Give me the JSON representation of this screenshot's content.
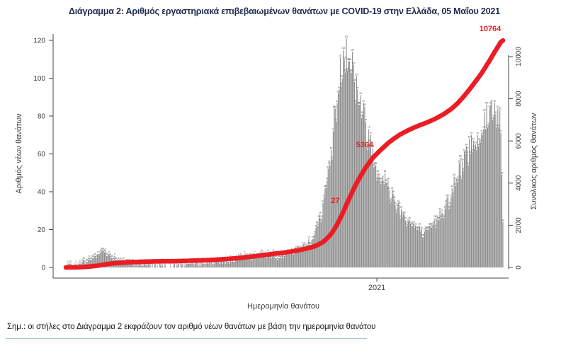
{
  "page": {
    "title": "Διάγραμμα 2: Αριθμός εργαστηριακά επιβεβαιωμένων θανάτων με COVID-19 στην Ελλάδα, 05 Μαΐου 2021",
    "note": "Σημ.: οι στήλες στο Διάγραμμα 2 εκφράζουν τον αριθμό νέων θανάτων με βάση την ημερομηνία θανάτου"
  },
  "chart_data": {
    "type": "bar",
    "title": "Διάγραμμα 2: Αριθμός εργαστηριακά επιβεβαιωμένων θανάτων με COVID-19 στην Ελλάδα, 05 Μαΐου 2021",
    "xlabel": "Ημερομηνία θανάτου",
    "x_axis": {
      "start_date": "2020-03-01",
      "end_date": "2021-05-05",
      "tick_labels": [
        "2021"
      ],
      "tick_dates": [
        "2021-01-01"
      ]
    },
    "y_left": {
      "label": "Αριθμός νέων θανάτων",
      "ticks": [
        0,
        20,
        40,
        60,
        80,
        100,
        120
      ],
      "ylim": [
        0,
        121
      ],
      "max_daily_deaths": 121
    },
    "y_right": {
      "label": "Συνολικός αριθμός θανάτων",
      "ticks": [
        0,
        2000,
        4000,
        6000,
        8000,
        10000
      ],
      "ylim": [
        0,
        10764
      ]
    },
    "series": [
      {
        "name": "daily-deaths-bars",
        "style": "bar",
        "description": "approximate daily new deaths envelope (control points interpolated per day)",
        "control_points": [
          [
            "2020-03-04",
            0.5
          ],
          [
            "2020-03-12",
            1
          ],
          [
            "2020-03-20",
            3
          ],
          [
            "2020-03-28",
            5
          ],
          [
            "2020-04-05",
            9
          ],
          [
            "2020-04-12",
            7
          ],
          [
            "2020-04-20",
            4
          ],
          [
            "2020-05-01",
            2.5
          ],
          [
            "2020-05-15",
            1.5
          ],
          [
            "2020-06-01",
            1
          ],
          [
            "2020-06-15",
            1
          ],
          [
            "2020-07-01",
            1.5
          ],
          [
            "2020-07-15",
            2
          ],
          [
            "2020-08-01",
            3
          ],
          [
            "2020-08-15",
            4
          ],
          [
            "2020-09-01",
            6
          ],
          [
            "2020-09-15",
            7
          ],
          [
            "2020-10-01",
            6
          ],
          [
            "2020-10-10",
            8
          ],
          [
            "2020-10-20",
            10
          ],
          [
            "2020-10-28",
            14
          ],
          [
            "2020-11-03",
            20
          ],
          [
            "2020-11-08",
            30
          ],
          [
            "2020-11-13",
            45
          ],
          [
            "2020-11-18",
            65
          ],
          [
            "2020-11-23",
            90
          ],
          [
            "2020-11-28",
            110
          ],
          [
            "2020-12-02",
            118
          ],
          [
            "2020-12-07",
            108
          ],
          [
            "2020-12-12",
            95
          ],
          [
            "2020-12-18",
            82
          ],
          [
            "2020-12-24",
            68
          ],
          [
            "2020-12-31",
            55
          ],
          [
            "2021-01-07",
            47
          ],
          [
            "2021-01-15",
            39
          ],
          [
            "2021-01-22",
            32
          ],
          [
            "2021-02-01",
            24
          ],
          [
            "2021-02-10",
            20
          ],
          [
            "2021-02-17",
            17
          ],
          [
            "2021-02-24",
            21
          ],
          [
            "2021-03-03",
            27
          ],
          [
            "2021-03-10",
            33
          ],
          [
            "2021-03-17",
            41
          ],
          [
            "2021-03-24",
            51
          ],
          [
            "2021-03-31",
            61
          ],
          [
            "2021-04-07",
            67
          ],
          [
            "2021-04-14",
            73
          ],
          [
            "2021-04-21",
            80
          ],
          [
            "2021-04-28",
            85
          ],
          [
            "2021-05-02",
            78
          ],
          [
            "2021-05-04",
            45
          ],
          [
            "2021-05-05",
            25
          ]
        ],
        "peak_value": 121
      },
      {
        "name": "cumulative-deaths-line",
        "style": "line",
        "description": "cumulative laboratory-confirmed deaths, derived as running sum of daily bars scaled to the final total",
        "final_total": 10764
      }
    ],
    "annotations": [
      {
        "label": "27",
        "value": 2760,
        "note": "remaining digits hidden behind the red line"
      },
      {
        "label": "5364",
        "value": 5364
      },
      {
        "label": "10764",
        "value": 10764
      }
    ],
    "legend": "none",
    "grid": false,
    "colors": {
      "bar": "#8a8a8a",
      "bar_value_label": "#4a4a4a",
      "line": "#ec1c24",
      "annotation": "#ec1c24",
      "axis": "#444444",
      "axis_text": "#3c3c3c",
      "title": "#1d2b4d"
    }
  }
}
